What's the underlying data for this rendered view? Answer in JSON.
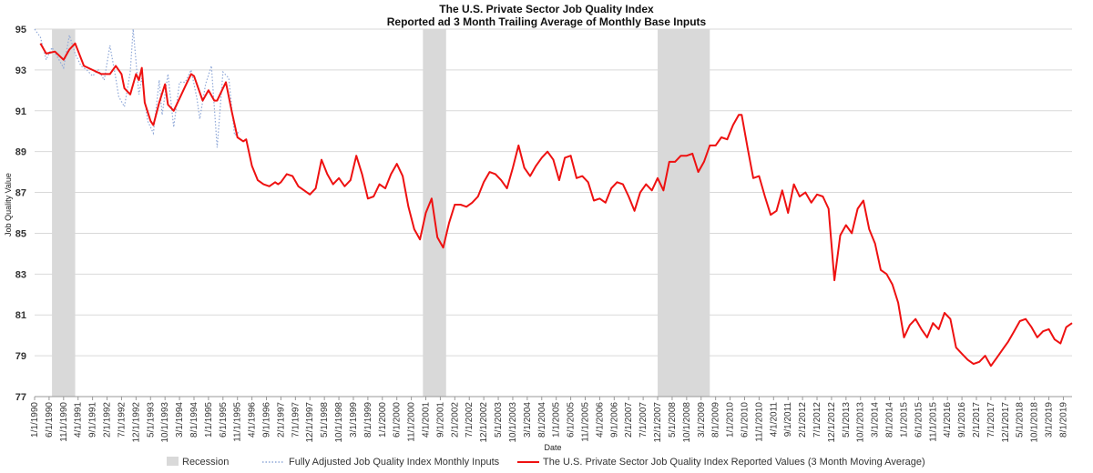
{
  "chart_data": {
    "type": "line",
    "title": "The U.S. Private Sector Job Quality Index",
    "subtitle": "Reported ad 3 Month Trailing Average of Monthly Base Inputs",
    "xlabel": "Date",
    "ylabel": "Job Quality Value",
    "ylim": [
      77,
      95
    ],
    "yticks": [
      77,
      79,
      81,
      83,
      85,
      87,
      89,
      91,
      93,
      95
    ],
    "xlim": [
      "1990-01",
      "2019-11"
    ],
    "xtick_labels": [
      "1/1/1990",
      "6/1/1990",
      "11/1/1990",
      "4/1/1991",
      "9/1/1991",
      "2/1/1992",
      "7/1/1992",
      "12/1/1992",
      "5/1/1993",
      "10/1/1993",
      "3/1/1994",
      "8/1/1994",
      "1/1/1995",
      "6/1/1995",
      "11/1/1995",
      "4/1/1996",
      "9/1/1996",
      "2/1/1997",
      "7/1/1997",
      "12/1/1997",
      "5/1/1998",
      "10/1/1998",
      "3/1/1999",
      "8/1/1999",
      "1/1/2000",
      "6/1/2000",
      "11/1/2000",
      "4/1/2001",
      "9/1/2001",
      "2/1/2002",
      "7/1/2002",
      "12/1/2002",
      "5/1/2003",
      "10/1/2003",
      "3/1/2004",
      "8/1/2004",
      "1/1/2005",
      "6/1/2005",
      "11/1/2005",
      "4/1/2006",
      "9/1/2006",
      "2/1/2007",
      "7/1/2007",
      "12/1/2007",
      "5/1/2008",
      "10/1/2008",
      "3/1/2009",
      "8/1/2009",
      "1/1/2010",
      "6/1/2010",
      "11/1/2010",
      "4/1/2011",
      "9/1/2011",
      "2/1/2012",
      "7/1/2012",
      "12/1/2012",
      "5/1/2013",
      "10/1/2013",
      "3/1/2014",
      "8/1/2014",
      "1/1/2015",
      "6/1/2015",
      "11/1/2015",
      "4/1/2016",
      "9/1/2016",
      "2/1/2017",
      "7/1/2017",
      "12/1/2017",
      "5/1/2018",
      "10/1/2018",
      "3/1/2019",
      "8/1/2019"
    ],
    "recessions": [
      {
        "start": "1990-07",
        "end": "1991-03"
      },
      {
        "start": "2001-03",
        "end": "2001-11"
      },
      {
        "start": "2007-12",
        "end": "2009-06"
      }
    ],
    "grid": "horizontal",
    "legend_position": "bottom",
    "legend": [
      {
        "label": "Recession",
        "kind": "band"
      },
      {
        "label": "Fully Adjusted Job Quality Index Monthly Inputs",
        "kind": "dotted-line"
      },
      {
        "label": "The U.S. Private Sector Job Quality Index Reported Values (3  Month Moving Average)",
        "kind": "line"
      }
    ],
    "colors": {
      "moving_average": "#ee1111",
      "monthly": "#8fa8d8",
      "recession": "#d9d9d9",
      "grid": "#d9d9d9"
    },
    "series": [
      {
        "name": "The U.S. Private Sector Job Quality Index Reported Values (3  Month Moving Average)",
        "style": "solid",
        "points": [
          [
            "1990-03",
            94.3
          ],
          [
            "1990-05",
            93.8
          ],
          [
            "1990-08",
            93.9
          ],
          [
            "1990-11",
            93.5
          ],
          [
            "1991-01",
            94.0
          ],
          [
            "1991-03",
            94.3
          ],
          [
            "1991-06",
            93.2
          ],
          [
            "1991-09",
            93.0
          ],
          [
            "1991-12",
            92.8
          ],
          [
            "1992-03",
            92.8
          ],
          [
            "1992-05",
            93.2
          ],
          [
            "1992-07",
            92.8
          ],
          [
            "1992-08",
            92.1
          ],
          [
            "1992-10",
            91.8
          ],
          [
            "1992-12",
            92.8
          ],
          [
            "1993-01",
            92.5
          ],
          [
            "1993-02",
            93.1
          ],
          [
            "1993-03",
            91.4
          ],
          [
            "1993-05",
            90.5
          ],
          [
            "1993-06",
            90.3
          ],
          [
            "1993-08",
            91.4
          ],
          [
            "1993-10",
            92.3
          ],
          [
            "1993-11",
            91.3
          ],
          [
            "1994-01",
            91.0
          ],
          [
            "1994-03",
            91.6
          ],
          [
            "1994-05",
            92.2
          ],
          [
            "1994-07",
            92.8
          ],
          [
            "1994-08",
            92.7
          ],
          [
            "1994-10",
            91.9
          ],
          [
            "1994-11",
            91.5
          ],
          [
            "1995-01",
            92.0
          ],
          [
            "1995-03",
            91.5
          ],
          [
            "1995-04",
            91.5
          ],
          [
            "1995-06",
            92.1
          ],
          [
            "1995-07",
            92.4
          ],
          [
            "1995-09",
            91.0
          ],
          [
            "1995-11",
            89.7
          ],
          [
            "1996-01",
            89.5
          ],
          [
            "1996-02",
            89.6
          ],
          [
            "1996-04",
            88.3
          ],
          [
            "1996-06",
            87.6
          ],
          [
            "1996-08",
            87.4
          ],
          [
            "1996-10",
            87.3
          ],
          [
            "1996-12",
            87.5
          ],
          [
            "1997-01",
            87.4
          ],
          [
            "1997-02",
            87.5
          ],
          [
            "1997-04",
            87.9
          ],
          [
            "1997-06",
            87.8
          ],
          [
            "1997-08",
            87.3
          ],
          [
            "1997-10",
            87.1
          ],
          [
            "1997-12",
            86.9
          ],
          [
            "1998-02",
            87.2
          ],
          [
            "1998-04",
            88.6
          ],
          [
            "1998-06",
            87.9
          ],
          [
            "1998-08",
            87.4
          ],
          [
            "1998-10",
            87.7
          ],
          [
            "1998-12",
            87.3
          ],
          [
            "1999-02",
            87.6
          ],
          [
            "1999-04",
            88.8
          ],
          [
            "1999-06",
            87.9
          ],
          [
            "1999-08",
            86.7
          ],
          [
            "1999-10",
            86.8
          ],
          [
            "1999-12",
            87.4
          ],
          [
            "2000-02",
            87.2
          ],
          [
            "2000-04",
            87.9
          ],
          [
            "2000-06",
            88.4
          ],
          [
            "2000-08",
            87.8
          ],
          [
            "2000-10",
            86.3
          ],
          [
            "2000-12",
            85.2
          ],
          [
            "2001-02",
            84.7
          ],
          [
            "2001-04",
            86.0
          ],
          [
            "2001-06",
            86.7
          ],
          [
            "2001-08",
            84.8
          ],
          [
            "2001-10",
            84.3
          ],
          [
            "2001-12",
            85.5
          ],
          [
            "2002-02",
            86.4
          ],
          [
            "2002-04",
            86.4
          ],
          [
            "2002-06",
            86.3
          ],
          [
            "2002-08",
            86.5
          ],
          [
            "2002-10",
            86.8
          ],
          [
            "2002-12",
            87.5
          ],
          [
            "2003-02",
            88.0
          ],
          [
            "2003-04",
            87.9
          ],
          [
            "2003-06",
            87.6
          ],
          [
            "2003-08",
            87.2
          ],
          [
            "2003-10",
            88.2
          ],
          [
            "2003-12",
            89.3
          ],
          [
            "2004-02",
            88.2
          ],
          [
            "2004-04",
            87.8
          ],
          [
            "2004-06",
            88.3
          ],
          [
            "2004-08",
            88.7
          ],
          [
            "2004-10",
            89.0
          ],
          [
            "2004-12",
            88.6
          ],
          [
            "2005-02",
            87.6
          ],
          [
            "2005-04",
            88.7
          ],
          [
            "2005-06",
            88.8
          ],
          [
            "2005-08",
            87.7
          ],
          [
            "2005-10",
            87.8
          ],
          [
            "2005-12",
            87.5
          ],
          [
            "2006-02",
            86.6
          ],
          [
            "2006-04",
            86.7
          ],
          [
            "2006-06",
            86.5
          ],
          [
            "2006-08",
            87.2
          ],
          [
            "2006-10",
            87.5
          ],
          [
            "2006-12",
            87.4
          ],
          [
            "2007-02",
            86.8
          ],
          [
            "2007-04",
            86.1
          ],
          [
            "2007-06",
            87.0
          ],
          [
            "2007-08",
            87.4
          ],
          [
            "2007-10",
            87.1
          ],
          [
            "2007-12",
            87.7
          ],
          [
            "2008-02",
            87.1
          ],
          [
            "2008-04",
            88.5
          ],
          [
            "2008-06",
            88.5
          ],
          [
            "2008-08",
            88.8
          ],
          [
            "2008-10",
            88.8
          ],
          [
            "2008-12",
            88.9
          ],
          [
            "2009-02",
            88.0
          ],
          [
            "2009-04",
            88.5
          ],
          [
            "2009-06",
            89.3
          ],
          [
            "2009-08",
            89.3
          ],
          [
            "2009-10",
            89.7
          ],
          [
            "2009-12",
            89.6
          ],
          [
            "2010-02",
            90.3
          ],
          [
            "2010-04",
            90.8
          ],
          [
            "2010-05",
            90.8
          ],
          [
            "2010-07",
            89.2
          ],
          [
            "2010-09",
            87.7
          ],
          [
            "2010-11",
            87.8
          ],
          [
            "2011-01",
            86.8
          ],
          [
            "2011-03",
            85.9
          ],
          [
            "2011-05",
            86.1
          ],
          [
            "2011-07",
            87.1
          ],
          [
            "2011-09",
            86.0
          ],
          [
            "2011-11",
            87.4
          ],
          [
            "2012-01",
            86.8
          ],
          [
            "2012-03",
            87.0
          ],
          [
            "2012-05",
            86.5
          ],
          [
            "2012-07",
            86.9
          ],
          [
            "2012-09",
            86.8
          ],
          [
            "2012-11",
            86.2
          ],
          [
            "2013-01",
            82.7
          ],
          [
            "2013-03",
            84.9
          ],
          [
            "2013-05",
            85.4
          ],
          [
            "2013-07",
            85.0
          ],
          [
            "2013-09",
            86.2
          ],
          [
            "2013-11",
            86.6
          ],
          [
            "2014-01",
            85.2
          ],
          [
            "2014-03",
            84.5
          ],
          [
            "2014-05",
            83.2
          ],
          [
            "2014-07",
            83.0
          ],
          [
            "2014-09",
            82.5
          ],
          [
            "2014-11",
            81.6
          ],
          [
            "2015-01",
            79.9
          ],
          [
            "2015-03",
            80.5
          ],
          [
            "2015-05",
            80.8
          ],
          [
            "2015-07",
            80.3
          ],
          [
            "2015-09",
            79.9
          ],
          [
            "2015-11",
            80.6
          ],
          [
            "2016-01",
            80.3
          ],
          [
            "2016-03",
            81.1
          ],
          [
            "2016-05",
            80.8
          ],
          [
            "2016-07",
            79.4
          ],
          [
            "2016-09",
            79.1
          ],
          [
            "2016-11",
            78.8
          ],
          [
            "2017-01",
            78.6
          ],
          [
            "2017-03",
            78.7
          ],
          [
            "2017-05",
            79.0
          ],
          [
            "2017-07",
            78.5
          ],
          [
            "2017-09",
            78.9
          ],
          [
            "2017-11",
            79.3
          ],
          [
            "2018-01",
            79.7
          ],
          [
            "2018-03",
            80.2
          ],
          [
            "2018-05",
            80.7
          ],
          [
            "2018-07",
            80.8
          ],
          [
            "2018-09",
            80.4
          ],
          [
            "2018-11",
            79.9
          ],
          [
            "2019-01",
            80.2
          ],
          [
            "2019-03",
            80.3
          ],
          [
            "2019-05",
            79.8
          ],
          [
            "2019-07",
            79.6
          ],
          [
            "2019-09",
            80.4
          ],
          [
            "2019-11",
            80.6
          ]
        ]
      },
      {
        "name": "Fully Adjusted Job Quality Index Monthly Inputs",
        "style": "dotted",
        "points": [
          [
            "1990-01",
            95.0
          ],
          [
            "1990-03",
            94.6
          ],
          [
            "1990-05",
            93.5
          ],
          [
            "1990-07",
            94.1
          ],
          [
            "1990-09",
            93.6
          ],
          [
            "1990-11",
            93.1
          ],
          [
            "1991-01",
            94.7
          ],
          [
            "1991-03",
            93.8
          ],
          [
            "1991-05",
            93.2
          ],
          [
            "1991-07",
            93.0
          ],
          [
            "1991-09",
            92.7
          ],
          [
            "1991-11",
            93.0
          ],
          [
            "1992-01",
            92.5
          ],
          [
            "1992-03",
            94.2
          ],
          [
            "1992-05",
            92.6
          ],
          [
            "1992-06",
            91.7
          ],
          [
            "1992-08",
            91.2
          ],
          [
            "1992-10",
            92.9
          ],
          [
            "1992-11",
            95.0
          ],
          [
            "1993-01",
            91.8
          ],
          [
            "1993-02",
            92.6
          ],
          [
            "1993-04",
            90.5
          ],
          [
            "1993-06",
            89.9
          ],
          [
            "1993-08",
            92.5
          ],
          [
            "1993-09",
            90.8
          ],
          [
            "1993-11",
            92.8
          ],
          [
            "1994-01",
            90.2
          ],
          [
            "1994-03",
            92.4
          ],
          [
            "1994-05",
            92.4
          ],
          [
            "1994-07",
            93.0
          ],
          [
            "1994-09",
            91.6
          ],
          [
            "1994-10",
            90.6
          ],
          [
            "1994-12",
            92.3
          ],
          [
            "1995-02",
            93.2
          ],
          [
            "1995-04",
            89.2
          ],
          [
            "1995-06",
            92.9
          ],
          [
            "1995-08",
            92.6
          ],
          [
            "1995-10",
            89.8
          ],
          [
            "1995-12",
            90.0
          ]
        ]
      }
    ]
  }
}
